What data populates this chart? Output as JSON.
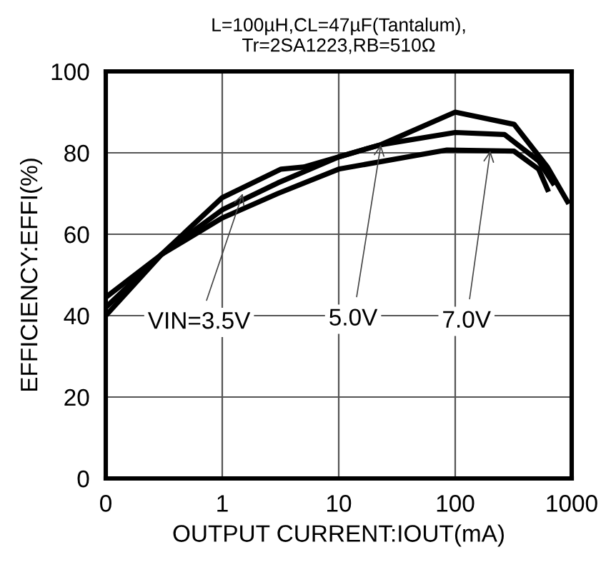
{
  "chart_data": {
    "type": "line",
    "title": "L=100µH,CL=47µF(Tantalum),\nTr=2SA1223,RB=510Ω",
    "xlabel": "OUTPUT CURRENT:IOUT(mA)",
    "ylabel": "EFFICIENCY:EFFI(%)",
    "log": "x",
    "xlim": [
      0.1,
      1000
    ],
    "xticks": [
      {
        "value": 0.1,
        "label": "0"
      },
      1,
      10,
      100,
      1000
    ],
    "ylim": [
      0,
      100
    ],
    "yticks": [
      0,
      20,
      40,
      60,
      80,
      100
    ],
    "grid": true,
    "marker": "none",
    "line_style": "solid",
    "series": [
      {
        "color": "#000000",
        "x": [
          0.1,
          0.3,
          1,
          3.2,
          5,
          23,
          100,
          320,
          620,
          920
        ],
        "values": [
          40,
          55,
          69,
          76,
          76.5,
          82,
          90,
          87,
          76.5,
          68
        ]
      },
      {
        "color": "#000000",
        "x": [
          0.1,
          0.3,
          1,
          3,
          10,
          23,
          100,
          265,
          520,
          690
        ],
        "values": [
          42,
          55,
          66,
          72.6,
          79,
          82,
          85,
          84.5,
          78,
          72.6
        ]
      },
      {
        "color": "#000000",
        "x": [
          0.1,
          0.3,
          1,
          3,
          10,
          85,
          320,
          520,
          620
        ],
        "values": [
          44.5,
          55,
          64,
          70,
          76,
          80.7,
          80.4,
          76,
          71
        ]
      }
    ],
    "annotations": [
      {
        "text": "VIN=3.5V",
        "x": 1.5,
        "y": 70
      },
      {
        "text": "5.0V",
        "x": 23,
        "y": 82
      },
      {
        "text": "7.0V",
        "x": 200,
        "y": 80.5
      }
    ]
  }
}
